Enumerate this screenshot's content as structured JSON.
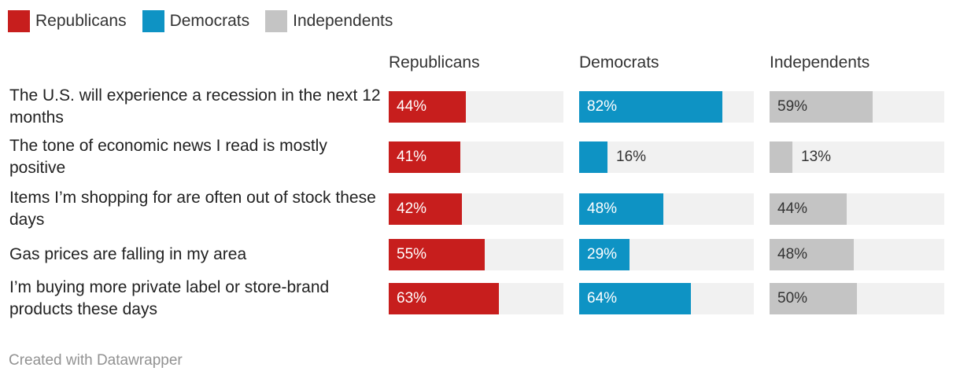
{
  "legend": [
    {
      "label": "Republicans",
      "color": "#c71e1d"
    },
    {
      "label": "Democrats",
      "color": "#0e93c4"
    },
    {
      "label": "Independents",
      "color": "#c4c4c4"
    }
  ],
  "footer": "Created with Datawrapper",
  "chart_data": {
    "type": "bar",
    "orientation": "horizontal",
    "layout": "small-multiples",
    "value_suffix": "%",
    "xlim": [
      0,
      100
    ],
    "categories": [
      "The U.S. will experience a recession in the next 12 months",
      "The tone of economic news I read is mostly positive",
      "Items I’m shopping for are often out of stock these days",
      "Gas prices are falling in my area",
      "I’m buying more private label or store-brand products these days"
    ],
    "series": [
      {
        "name": "Republicans",
        "color": "#c71e1d",
        "text_color": "#ffffff",
        "values": [
          44,
          41,
          42,
          55,
          63
        ]
      },
      {
        "name": "Democrats",
        "color": "#0e93c4",
        "text_color": "#ffffff",
        "values": [
          82,
          16,
          48,
          29,
          64
        ]
      },
      {
        "name": "Independents",
        "color": "#c4c4c4",
        "text_color": "#333333",
        "values": [
          59,
          13,
          44,
          48,
          50
        ]
      }
    ]
  }
}
